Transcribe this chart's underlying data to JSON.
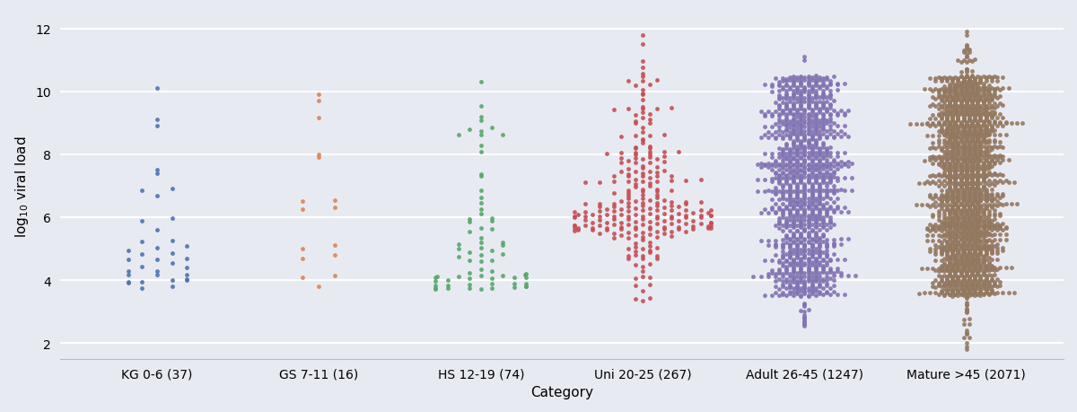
{
  "categories": [
    "KG 0-6 (37)",
    "GS 7-11 (16)",
    "HS 12-19 (74)",
    "Uni 20-25 (267)",
    "Adult 26-45 (1247)",
    "Mature >45 (2071)"
  ],
  "n_samples": [
    37,
    16,
    74,
    267,
    1247,
    2071
  ],
  "colors": [
    "#4C72B0",
    "#DD8452",
    "#55A868",
    "#C44E52",
    "#8172B2",
    "#937860"
  ],
  "ylabel": "log$_{10}$ viral load",
  "xlabel": "Category",
  "ylim": [
    1.5,
    12.5
  ],
  "yticks": [
    2,
    4,
    6,
    8,
    10,
    12
  ],
  "background_color": "#E8EAF2",
  "grid_color": "#FFFFFF",
  "seed": 42,
  "dot_size": 12
}
